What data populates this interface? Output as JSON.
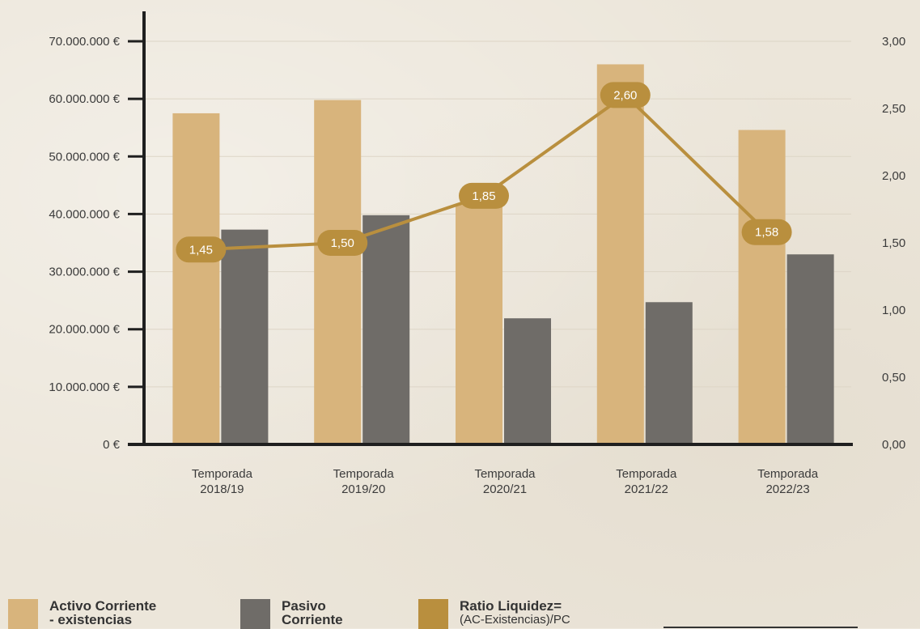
{
  "chart_data": {
    "type": "bar",
    "categories": [
      [
        "Temporada",
        "2018/19"
      ],
      [
        "Temporada",
        "2019/20"
      ],
      [
        "Temporada",
        "2020/21"
      ],
      [
        "Temporada",
        "2021/22"
      ],
      [
        "Temporada",
        "2022/23"
      ]
    ],
    "series": [
      {
        "name": "Activo Corriente - existencias",
        "type": "bar",
        "axis": "left",
        "color": "#d8b47c",
        "values": [
          57500000,
          59800000,
          41700000,
          66000000,
          54600000
        ]
      },
      {
        "name": "Pasivo Corriente",
        "type": "bar",
        "axis": "left",
        "color": "#6f6c68",
        "values": [
          37300000,
          39800000,
          21900000,
          24700000,
          33000000
        ]
      },
      {
        "name": "Ratio Liquidez= (AC-Existencias)/PC",
        "type": "line",
        "axis": "right",
        "color": "#b98f3e",
        "values": [
          1.45,
          1.5,
          1.85,
          2.6,
          1.58
        ],
        "labels": [
          "1,45",
          "1,50",
          "1,85",
          "2,60",
          "1,58"
        ]
      }
    ],
    "y_left": {
      "min": 0,
      "max": 70000000,
      "ticks": [
        0,
        10000000,
        20000000,
        30000000,
        40000000,
        50000000,
        60000000,
        70000000
      ],
      "tick_labels": [
        "0 €",
        "10.000.000 €",
        "20.000.000 €",
        "30.000.000 €",
        "40.000.000 €",
        "50.000.000 €",
        "60.000.000 €",
        "70.000.000 €"
      ]
    },
    "y_right": {
      "min": 0,
      "max": 3,
      "ticks": [
        0,
        0.5,
        1,
        1.5,
        2,
        2.5,
        3
      ],
      "tick_labels": [
        "0,00",
        "0,50",
        "1,00",
        "1,50",
        "2,00",
        "2,50",
        "3,00"
      ]
    },
    "grid": true,
    "legend": "bottom"
  },
  "legend": {
    "activo_line1": "Activo Corriente",
    "activo_line2": "- existencias",
    "pasivo_line1": "Pasivo",
    "pasivo_line2": "Corriente",
    "ratio_line1": "Ratio Liquidez=",
    "ratio_line2": "(AC-Existencias)/PC"
  },
  "colors": {
    "activo": "#d8b47c",
    "pasivo": "#6f6c68",
    "ratio": "#b98f3e",
    "axis": "#1f1f1f"
  }
}
